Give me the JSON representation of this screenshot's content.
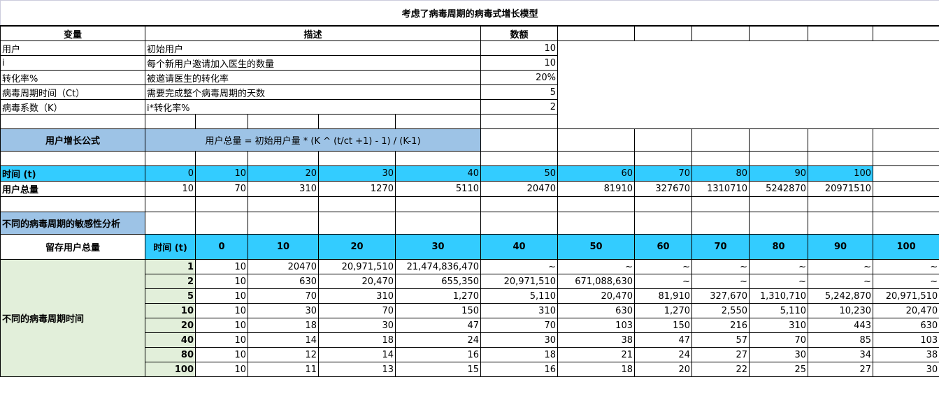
{
  "title": "考虑了病毒周期的病毒式增长模型",
  "params_header": {
    "variable": "变量",
    "description": "描述",
    "amount": "数额"
  },
  "params": [
    {
      "variable": "用户",
      "description": "初始用户",
      "amount": "10"
    },
    {
      "variable": "i",
      "description": "每个新用户邀请加入医生的数量",
      "amount": "10"
    },
    {
      "variable": "转化率%",
      "description": "被邀请医生的转化率",
      "amount": "20%"
    },
    {
      "variable": "病毒周期时间（Ct）",
      "description": "需要完成整个病毒周期的天数",
      "amount": "5"
    },
    {
      "variable": "病毒系数（K）",
      "description": "i*转化率%",
      "amount": "2"
    }
  ],
  "formula": {
    "label": "用户增长公式",
    "text": "用户总量 = 初始用户量 * (K ^ (t/ct +1) - 1) / (K-1)"
  },
  "growth": {
    "time_label": "时间 (t)",
    "total_label": "用户总量",
    "times": [
      "0",
      "10",
      "20",
      "30",
      "40",
      "50",
      "60",
      "70",
      "80",
      "90",
      "100"
    ],
    "totals": [
      "10",
      "70",
      "310",
      "1270",
      "5110",
      "20470",
      "81910",
      "327670",
      "1310710",
      "5242870",
      "20971510"
    ]
  },
  "sensitivity": {
    "title": "不同的病毒周期的敏感性分析",
    "retained_label": "留存用户总量",
    "time_label": "时间 (t)",
    "times": [
      "0",
      "10",
      "20",
      "30",
      "40",
      "50",
      "60",
      "70",
      "80",
      "90",
      "100"
    ],
    "group_label": "不同的病毒周期时间",
    "rows": [
      {
        "ct": "1",
        "values": [
          "10",
          "20470",
          "20,971,510",
          "21,474,836,470",
          "~",
          "~",
          "~",
          "~",
          "~",
          "~",
          "~"
        ]
      },
      {
        "ct": "2",
        "values": [
          "10",
          "630",
          "20,470",
          "655,350",
          "20,971,510",
          "671,088,630",
          "~",
          "~",
          "~",
          "~",
          "~"
        ]
      },
      {
        "ct": "5",
        "values": [
          "10",
          "70",
          "310",
          "1,270",
          "5,110",
          "20,470",
          "81,910",
          "327,670",
          "1,310,710",
          "5,242,870",
          "20,971,510"
        ]
      },
      {
        "ct": "10",
        "values": [
          "10",
          "30",
          "70",
          "150",
          "310",
          "630",
          "1,270",
          "2,550",
          "5,110",
          "10,230",
          "20,470"
        ]
      },
      {
        "ct": "20",
        "values": [
          "10",
          "18",
          "30",
          "47",
          "70",
          "103",
          "150",
          "216",
          "310",
          "443",
          "630"
        ]
      },
      {
        "ct": "40",
        "values": [
          "10",
          "14",
          "18",
          "24",
          "30",
          "38",
          "47",
          "57",
          "70",
          "85",
          "103"
        ]
      },
      {
        "ct": "80",
        "values": [
          "10",
          "12",
          "14",
          "16",
          "18",
          "21",
          "24",
          "27",
          "30",
          "34",
          "38"
        ]
      },
      {
        "ct": "100",
        "values": [
          "10",
          "11",
          "13",
          "15",
          "16",
          "18",
          "20",
          "22",
          "25",
          "27",
          "30"
        ]
      }
    ]
  },
  "colors": {
    "header_blue": "#9DC3E6",
    "cyan": "#33CCFF",
    "green": "#E2EFDA"
  }
}
